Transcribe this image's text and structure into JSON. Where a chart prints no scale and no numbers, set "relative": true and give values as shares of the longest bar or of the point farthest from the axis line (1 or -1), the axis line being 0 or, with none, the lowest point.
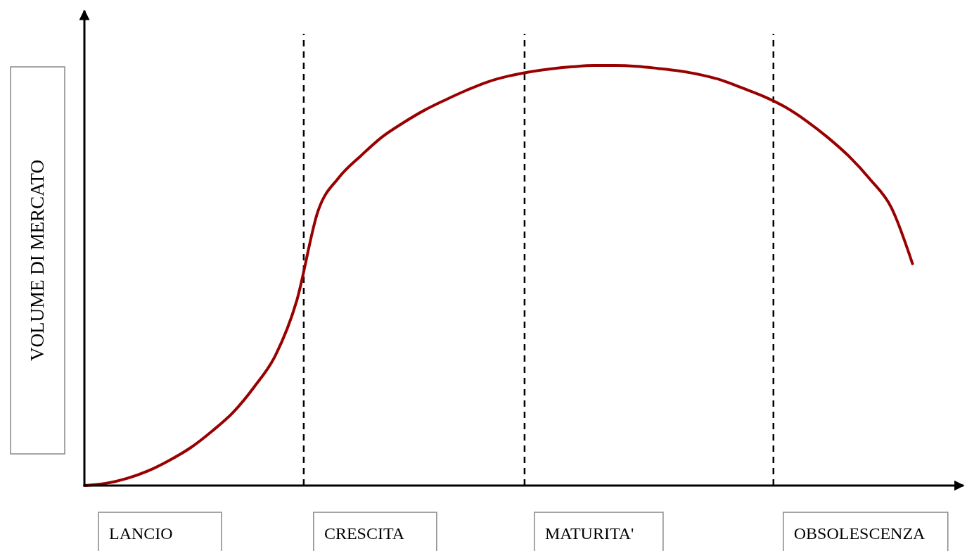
{
  "chart_data": {
    "type": "line",
    "relative": true,
    "ylabel": "VOLUME DI MERCATO",
    "categories": [
      null,
      null,
      null,
      null,
      null,
      null,
      null,
      null,
      null,
      null,
      null,
      null,
      null,
      null,
      null,
      null,
      null,
      null,
      null,
      null,
      null,
      null,
      null,
      null,
      null,
      null,
      null,
      null,
      null,
      null,
      null,
      null,
      null,
      null,
      null,
      null,
      null,
      null,
      null,
      null
    ],
    "series": [
      {
        "color": "#990000",
        "values": [
          0,
          0.005,
          0.017,
          0.035,
          0.06,
          0.09,
          0.129,
          0.174,
          0.235,
          0.31,
          0.44,
          0.653,
          0.734,
          0.784,
          0.829,
          0.863,
          0.893,
          0.918,
          0.941,
          0.961,
          0.975,
          0.985,
          0.992,
          0.997,
          1,
          1,
          0.998,
          0.993,
          0.987,
          0.978,
          0.965,
          0.946,
          0.926,
          0.901,
          0.868,
          0.829,
          0.784,
          0.729,
          0.662,
          0.528
        ]
      }
    ],
    "annotations": [
      "LANCIO",
      "CRESCITA",
      "MATURITA'",
      "OBSOLESCENZA"
    ],
    "line_style": "solid"
  }
}
